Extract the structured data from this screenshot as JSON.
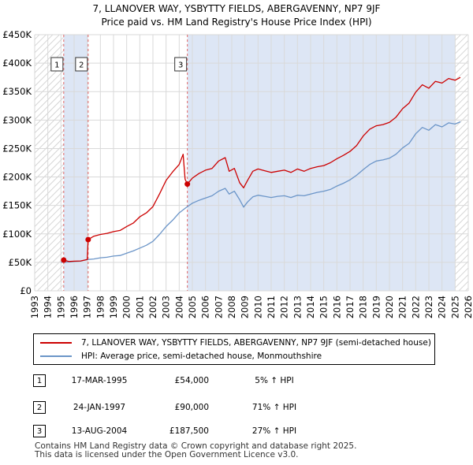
{
  "header": {
    "title": "7, LLANOVER WAY, YSBYTTY FIELDS, ABERGAVENNY, NP7 9JF",
    "subtitle": "Price paid vs. HM Land Registry's House Price Index (HPI)"
  },
  "colors": {
    "property": "#cc0000",
    "hpi": "#6b95c8",
    "shade": "#dde6f5",
    "grid": "#d9d9d9",
    "marker_line": "#e06666"
  },
  "chart_data": {
    "type": "line",
    "title": "Price paid vs. HM Land Registry's House Price Index (HPI)",
    "xlabel": "",
    "ylabel": "",
    "xlim": [
      1993,
      2026
    ],
    "ylim": [
      0,
      450000
    ],
    "x_ticks": [
      "1993",
      "1994",
      "1995",
      "1996",
      "1997",
      "1998",
      "1999",
      "2000",
      "2001",
      "2002",
      "2003",
      "2004",
      "2005",
      "2006",
      "2007",
      "2008",
      "2009",
      "2010",
      "2011",
      "2012",
      "2013",
      "2014",
      "2015",
      "2016",
      "2017",
      "2018",
      "2019",
      "2020",
      "2021",
      "2022",
      "2023",
      "2024",
      "2025",
      "2026"
    ],
    "y_ticks": [
      {
        "value": 0,
        "label": "£0"
      },
      {
        "value": 50000,
        "label": "£50K"
      },
      {
        "value": 100000,
        "label": "£100K"
      },
      {
        "value": 150000,
        "label": "£150K"
      },
      {
        "value": 200000,
        "label": "£200K"
      },
      {
        "value": 250000,
        "label": "£250K"
      },
      {
        "value": 300000,
        "label": "£300K"
      },
      {
        "value": 350000,
        "label": "£350K"
      },
      {
        "value": 400000,
        "label": "£400K"
      },
      {
        "value": 450000,
        "label": "£450K"
      }
    ],
    "shaded_ranges": [
      [
        1995.21,
        1997.07
      ],
      [
        2004.62,
        2025.0
      ]
    ],
    "hatched_ranges": [
      [
        1993,
        1995.21
      ],
      [
        2025.0,
        2026
      ]
    ],
    "series": [
      {
        "name": "7, LLANOVER WAY, YSBYTTY FIELDS, ABERGAVENNY, NP7 9JF (semi-detached house)",
        "x": [
          1995.21,
          1995.6,
          1996.0,
          1996.5,
          1997.0,
          1997.07,
          1997.5,
          1998.0,
          1998.5,
          1999.0,
          1999.5,
          2000.0,
          2000.5,
          2001.0,
          2001.5,
          2002.0,
          2002.5,
          2003.0,
          2003.5,
          2004.0,
          2004.3,
          2004.45,
          2004.62,
          2005.0,
          2005.5,
          2006.0,
          2006.5,
          2007.0,
          2007.5,
          2007.8,
          2008.2,
          2008.6,
          2008.9,
          2009.2,
          2009.6,
          2010.0,
          2010.5,
          2011.0,
          2011.5,
          2012.0,
          2012.5,
          2013.0,
          2013.5,
          2014.0,
          2014.5,
          2015.0,
          2015.5,
          2016.0,
          2016.5,
          2017.0,
          2017.5,
          2018.0,
          2018.5,
          2019.0,
          2019.5,
          2020.0,
          2020.5,
          2021.0,
          2021.5,
          2022.0,
          2022.5,
          2023.0,
          2023.5,
          2024.0,
          2024.5,
          2025.0,
          2025.4
        ],
        "values": [
          54000,
          51500,
          52000,
          52500,
          55000,
          90000,
          96000,
          99000,
          101000,
          104000,
          106000,
          113000,
          119000,
          130000,
          137000,
          148000,
          170000,
          194000,
          209000,
          222000,
          240000,
          196000,
          187500,
          198000,
          206000,
          212000,
          215000,
          228000,
          234000,
          210000,
          215000,
          190000,
          181000,
          194000,
          210000,
          214000,
          211000,
          208000,
          210000,
          212000,
          208000,
          214000,
          210000,
          215000,
          218000,
          220000,
          225000,
          232000,
          238000,
          245000,
          255000,
          272000,
          284000,
          290000,
          292000,
          296000,
          305000,
          320000,
          330000,
          349000,
          362000,
          356000,
          368000,
          365000,
          373000,
          370000,
          375000
        ]
      },
      {
        "name": "HPI: Average price, semi-detached house, Monmouthshire",
        "x": [
          1995.0,
          1995.5,
          1996.0,
          1996.5,
          1997.0,
          1997.5,
          1998.0,
          1998.5,
          1999.0,
          1999.5,
          2000.0,
          2000.5,
          2001.0,
          2001.5,
          2002.0,
          2002.5,
          2003.0,
          2003.5,
          2004.0,
          2004.5,
          2005.0,
          2005.5,
          2006.0,
          2006.5,
          2007.0,
          2007.5,
          2007.8,
          2008.2,
          2008.6,
          2008.9,
          2009.2,
          2009.6,
          2010.0,
          2010.5,
          2011.0,
          2011.5,
          2012.0,
          2012.5,
          2013.0,
          2013.5,
          2014.0,
          2014.5,
          2015.0,
          2015.5,
          2016.0,
          2016.5,
          2017.0,
          2017.5,
          2018.0,
          2018.5,
          2019.0,
          2019.5,
          2020.0,
          2020.5,
          2021.0,
          2021.5,
          2022.0,
          2022.5,
          2023.0,
          2023.5,
          2024.0,
          2024.5,
          2025.0,
          2025.4
        ],
        "values": [
          50000,
          50500,
          51500,
          52000,
          55000,
          56000,
          58000,
          59000,
          61000,
          62000,
          66000,
          70000,
          75000,
          80000,
          87000,
          99000,
          113000,
          124000,
          137000,
          146000,
          154000,
          159000,
          163000,
          167000,
          175000,
          180000,
          170000,
          175000,
          160000,
          147000,
          156000,
          165000,
          168000,
          166000,
          164000,
          166000,
          167000,
          164000,
          168000,
          167000,
          170000,
          173000,
          175000,
          178000,
          184000,
          189000,
          195000,
          203000,
          213000,
          222000,
          228000,
          230000,
          233000,
          240000,
          251000,
          259000,
          276000,
          287000,
          282000,
          292000,
          288000,
          295000,
          293000,
          297000
        ]
      }
    ],
    "transactions": [
      {
        "num": "1",
        "x": 1995.21,
        "value": 54000
      },
      {
        "num": "2",
        "x": 1997.07,
        "value": 90000
      },
      {
        "num": "3",
        "x": 2004.62,
        "value": 187500
      }
    ]
  },
  "legend": {
    "property_label": "7, LLANOVER WAY, YSBYTTY FIELDS, ABERGAVENNY, NP7 9JF (semi-detached house)",
    "hpi_label": "HPI: Average price, semi-detached house, Monmouthshire"
  },
  "table": [
    {
      "num": "1",
      "date": "17-MAR-1995",
      "price": "£54,000",
      "hpi": "5% ↑ HPI"
    },
    {
      "num": "2",
      "date": "24-JAN-1997",
      "price": "£90,000",
      "hpi": "71% ↑ HPI"
    },
    {
      "num": "3",
      "date": "13-AUG-2004",
      "price": "£187,500",
      "hpi": "27% ↑ HPI"
    }
  ],
  "footer": {
    "line1": "Contains HM Land Registry data © Crown copyright and database right 2025.",
    "line2": "This data is licensed under the Open Government Licence v3.0."
  }
}
